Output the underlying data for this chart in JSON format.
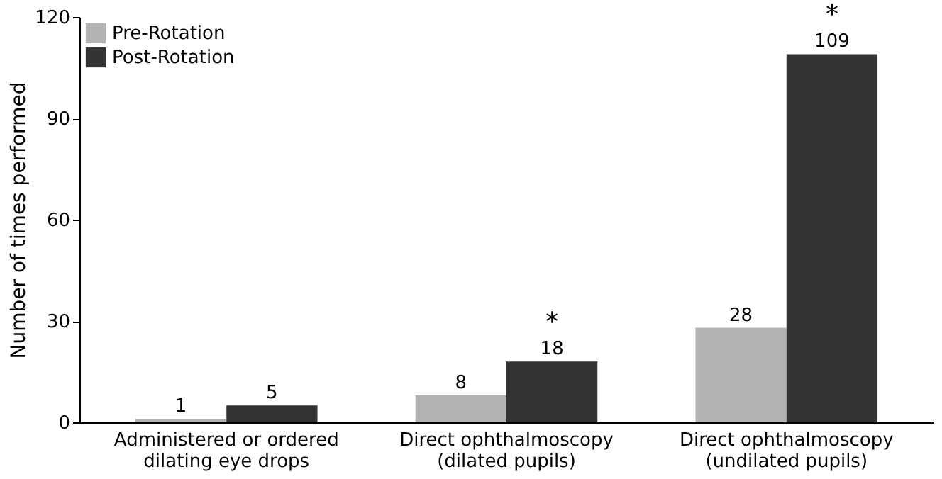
{
  "chart_data": {
    "type": "bar",
    "ylabel": "Number of times performed",
    "categories": [
      "Administered or ordered\ndilating eye drops",
      "Direct ophthalmoscopy\n(dilated pupils)",
      "Direct ophthalmoscopy\n(undilated pupils)"
    ],
    "series": [
      {
        "name": "Pre-Rotation",
        "color": "#b3b3b3",
        "values": [
          1,
          8,
          28
        ]
      },
      {
        "name": "Post-Rotation",
        "color": "#333333",
        "values": [
          5,
          18,
          109
        ]
      }
    ],
    "ylim": [
      0,
      120
    ],
    "yticks": [
      0,
      30,
      60,
      90,
      120
    ],
    "data_labels": true,
    "legend": "top left",
    "grid": false,
    "annotations": [
      {
        "text": "*",
        "x": "Direct ophthalmoscopy\n(dilated pupils)",
        "y": 18
      },
      {
        "text": "*",
        "x": "Direct ophthalmoscopy\n(undilated pupils)",
        "y": 109
      }
    ]
  }
}
